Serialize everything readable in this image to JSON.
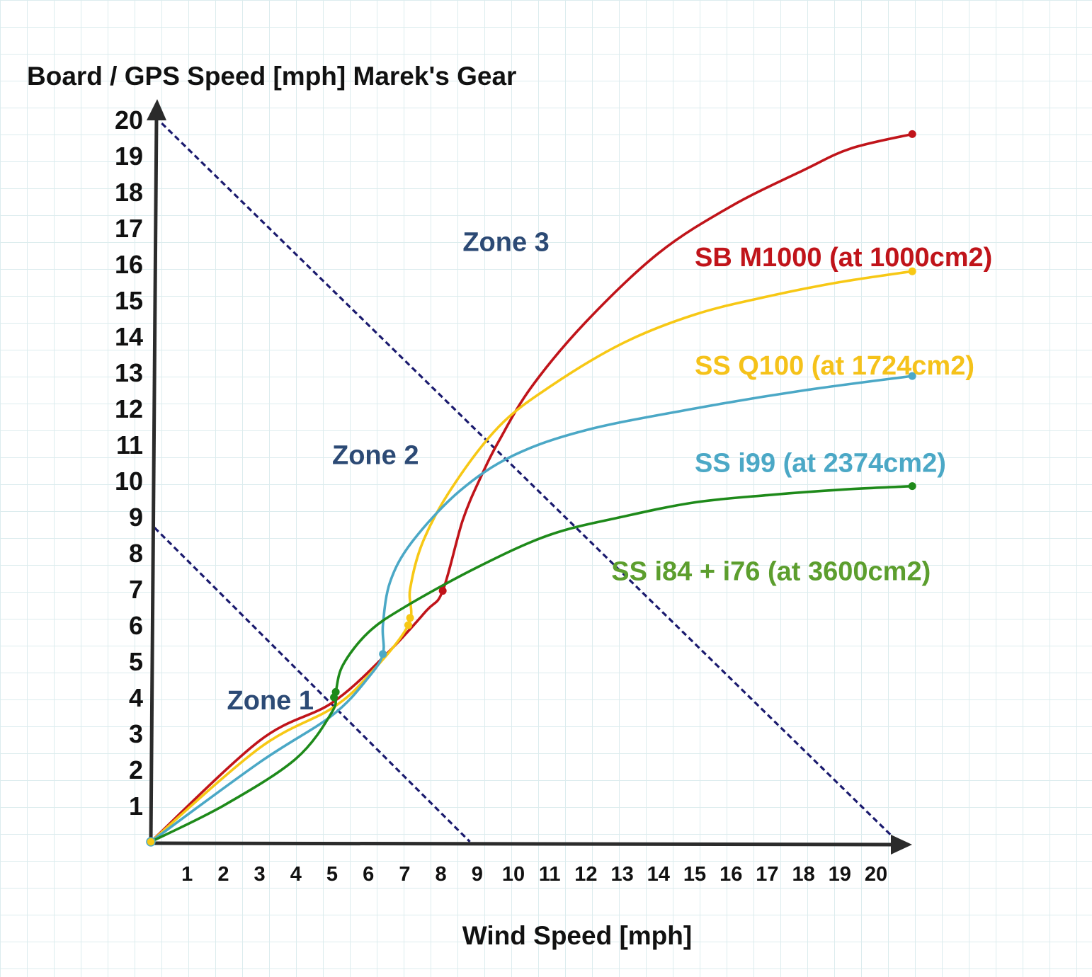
{
  "chart_data": {
    "type": "line",
    "title": "Board / GPS Speed [mph] Marek's Gear",
    "xlabel": "Wind Speed [mph]",
    "ylabel": "Board / GPS Speed [mph]",
    "xlim": [
      0,
      21
    ],
    "ylim": [
      0,
      20
    ],
    "x_ticks": [
      "1",
      "2",
      "3",
      "4",
      "5",
      "6",
      "7",
      "8",
      "9",
      "10",
      "11",
      "12",
      "13",
      "14",
      "15",
      "16",
      "17",
      "18",
      "19",
      "20"
    ],
    "y_ticks": [
      "1",
      "2",
      "3",
      "4",
      "5",
      "6",
      "7",
      "8",
      "9",
      "10",
      "11",
      "12",
      "13",
      "14",
      "15",
      "16",
      "17",
      "18",
      "19",
      "20"
    ],
    "grid": true,
    "colors": {
      "axis": "#2b2b2b",
      "zone_line": "#1a1a6e",
      "zone_label": "#2c4a75",
      "background_grid": "#dcecee"
    },
    "zones": [
      {
        "name": "Zone 1",
        "label_at": [
          2.1,
          3.9
        ]
      },
      {
        "name": "Zone 2",
        "label_at": [
          5.0,
          10.7
        ]
      },
      {
        "name": "Zone 3",
        "label_at": [
          8.6,
          16.6
        ]
      }
    ],
    "zone_lines": [
      {
        "from": [
          0.1,
          8.7
        ],
        "to": [
          8.8,
          0.0
        ]
      },
      {
        "from": [
          0.3,
          19.9
        ],
        "to": [
          20.6,
          0.0
        ]
      }
    ],
    "series": [
      {
        "name": "SB M1000 (at 1000cm2)",
        "color": "#c0141a",
        "points": [
          [
            0,
            0
          ],
          [
            3,
            2.8
          ],
          [
            5,
            3.85
          ],
          [
            6.5,
            5.2
          ],
          [
            7.6,
            6.4
          ],
          [
            8.05,
            6.95
          ],
          [
            8.6,
            8.9
          ],
          [
            9.1,
            10.1
          ],
          [
            9.6,
            11.1
          ],
          [
            10.5,
            12.6
          ],
          [
            12,
            14.4
          ],
          [
            14,
            16.3
          ],
          [
            16,
            17.6
          ],
          [
            18,
            18.6
          ],
          [
            19.3,
            19.2
          ],
          [
            21,
            19.6
          ]
        ],
        "label_at": [
          15.0,
          16.2
        ]
      },
      {
        "name": "SS Q100 (at 1724cm2)",
        "color": "#f7c815",
        "points": [
          [
            0,
            0
          ],
          [
            3,
            2.6
          ],
          [
            5,
            3.7
          ],
          [
            6,
            4.6
          ],
          [
            7.1,
            6.0
          ],
          [
            7.15,
            7.0
          ],
          [
            7.5,
            8.3
          ],
          [
            8.3,
            9.8
          ],
          [
            9.6,
            11.5
          ],
          [
            11,
            12.6
          ],
          [
            13,
            13.8
          ],
          [
            15,
            14.6
          ],
          [
            17,
            15.1
          ],
          [
            19,
            15.5
          ],
          [
            21,
            15.8
          ]
        ],
        "label_at": [
          15.0,
          13.2
        ]
      },
      {
        "name": "SS i99 (at 2374cm2)",
        "color": "#4ba8c6",
        "points": [
          [
            0,
            0
          ],
          [
            3,
            2.2
          ],
          [
            5,
            3.5
          ],
          [
            6,
            4.55
          ],
          [
            6.4,
            5.2
          ],
          [
            6.4,
            6.0
          ],
          [
            6.6,
            7.2
          ],
          [
            7.2,
            8.3
          ],
          [
            8.5,
            9.7
          ],
          [
            10,
            10.7
          ],
          [
            12,
            11.4
          ],
          [
            15,
            12.0
          ],
          [
            18,
            12.5
          ],
          [
            21,
            12.9
          ]
        ],
        "label_at": [
          15.0,
          10.5
        ]
      },
      {
        "name": "SS i84 + i76 (at 3600cm2)",
        "color": "#1e8a1a",
        "points": [
          [
            0,
            0
          ],
          [
            2,
            1.0
          ],
          [
            4,
            2.3
          ],
          [
            5,
            3.6
          ],
          [
            5.1,
            4.15
          ],
          [
            5.3,
            4.9
          ],
          [
            6,
            5.8
          ],
          [
            7,
            6.5
          ],
          [
            9,
            7.6
          ],
          [
            11,
            8.5
          ],
          [
            13,
            9.0
          ],
          [
            15,
            9.4
          ],
          [
            17,
            9.6
          ],
          [
            19,
            9.75
          ],
          [
            21,
            9.85
          ]
        ],
        "label_at": [
          12.7,
          7.5
        ]
      }
    ],
    "label_colors": {
      "SB M1000 (at 1000cm2)": "#c0141a",
      "SS Q100 (at 1724cm2)": "#f5c21a",
      "SS i99 (at 2374cm2)": "#4ba8c6",
      "SS i84 + i76 (at 3600cm2)": "#5c9e2e"
    },
    "markers": [
      {
        "series": 0,
        "points": [
          [
            8.05,
            6.95
          ],
          [
            21,
            19.6
          ]
        ]
      },
      {
        "series": 1,
        "points": [
          [
            7.1,
            6.0
          ],
          [
            7.15,
            6.2
          ],
          [
            21,
            15.8
          ]
        ]
      },
      {
        "series": 2,
        "points": [
          [
            6.4,
            5.2
          ],
          [
            21,
            12.9
          ]
        ]
      },
      {
        "series": 3,
        "points": [
          [
            5.05,
            4.0
          ],
          [
            5.1,
            4.15
          ],
          [
            21,
            9.85
          ]
        ]
      }
    ]
  }
}
